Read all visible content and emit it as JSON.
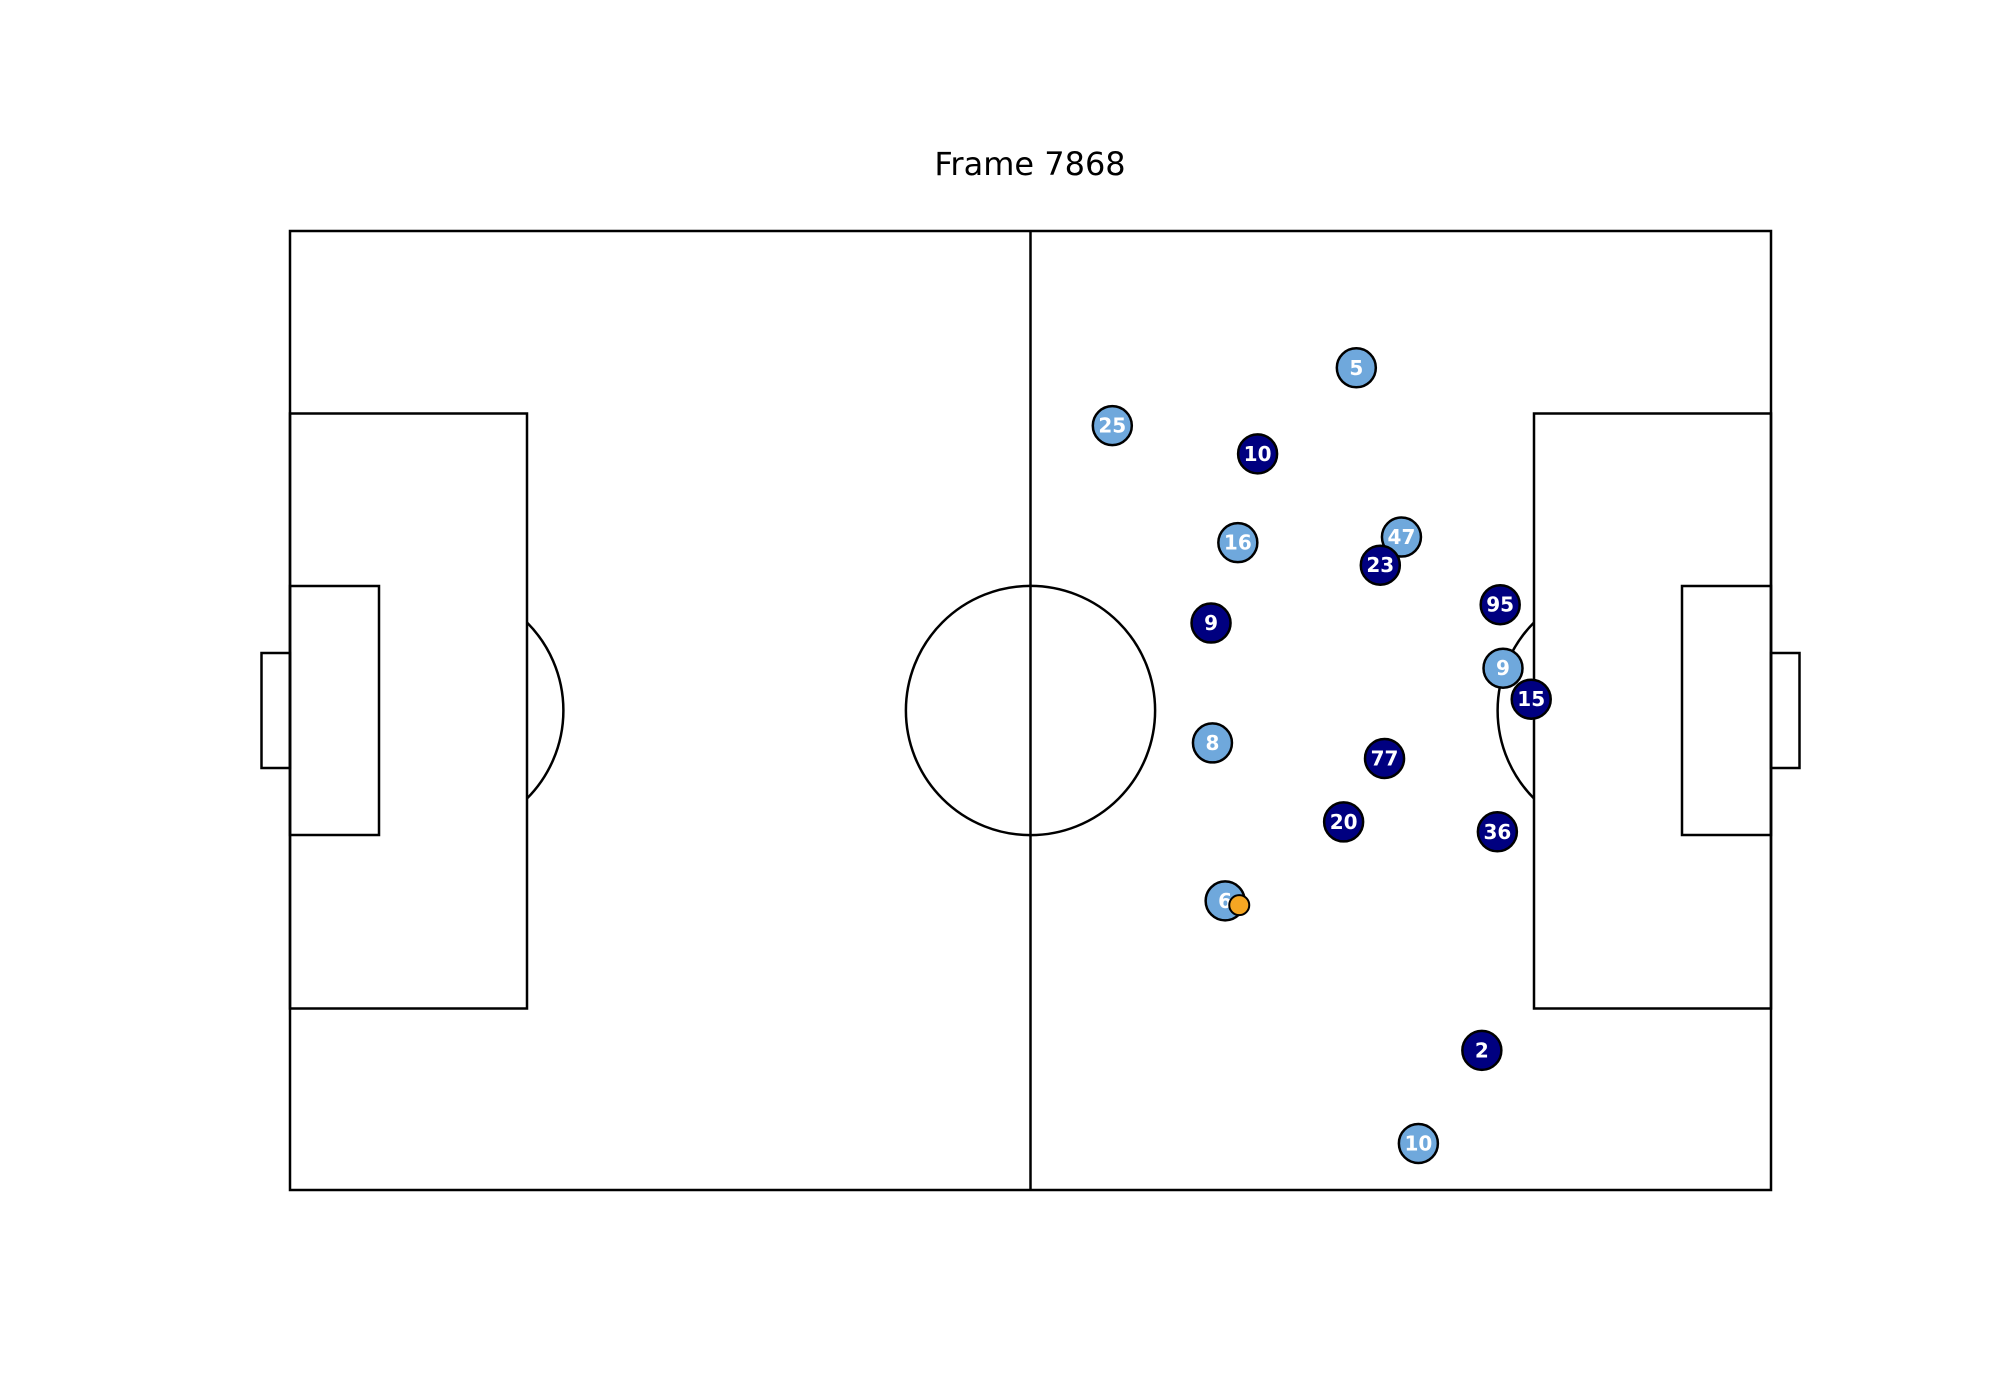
{
  "title": "Frame 7868",
  "colors": {
    "home_team": "#6fa8dc",
    "away_team": "#000080",
    "ball": "#f5a623",
    "outline": "#000000",
    "label": "#ffffff"
  },
  "pitch": {
    "length": 105,
    "width": 68,
    "units": "m"
  },
  "players": [
    {
      "team": "home",
      "number": "5",
      "x": 75.6,
      "y": 9.7
    },
    {
      "team": "home",
      "number": "25",
      "x": 58.3,
      "y": 13.8
    },
    {
      "team": "home",
      "number": "16",
      "x": 67.2,
      "y": 22.1
    },
    {
      "team": "home",
      "number": "47",
      "x": 78.8,
      "y": 21.7
    },
    {
      "team": "home",
      "number": "9",
      "x": 86.0,
      "y": 31.0
    },
    {
      "team": "home",
      "number": "8",
      "x": 65.4,
      "y": 36.3
    },
    {
      "team": "home",
      "number": "6",
      "x": 66.3,
      "y": 47.5
    },
    {
      "team": "home",
      "number": "10",
      "x": 80.0,
      "y": 64.7
    },
    {
      "team": "away",
      "number": "10",
      "x": 68.6,
      "y": 15.8
    },
    {
      "team": "away",
      "number": "23",
      "x": 77.3,
      "y": 23.7
    },
    {
      "team": "away",
      "number": "95",
      "x": 85.8,
      "y": 26.5
    },
    {
      "team": "away",
      "number": "9",
      "x": 65.3,
      "y": 27.8
    },
    {
      "team": "away",
      "number": "15",
      "x": 88.0,
      "y": 33.2
    },
    {
      "team": "away",
      "number": "77",
      "x": 77.6,
      "y": 37.4
    },
    {
      "team": "away",
      "number": "20",
      "x": 74.7,
      "y": 41.9
    },
    {
      "team": "away",
      "number": "36",
      "x": 85.6,
      "y": 42.6
    },
    {
      "team": "away",
      "number": "2",
      "x": 84.5,
      "y": 58.1
    }
  ],
  "ball": {
    "x": 67.3,
    "y": 47.8
  }
}
